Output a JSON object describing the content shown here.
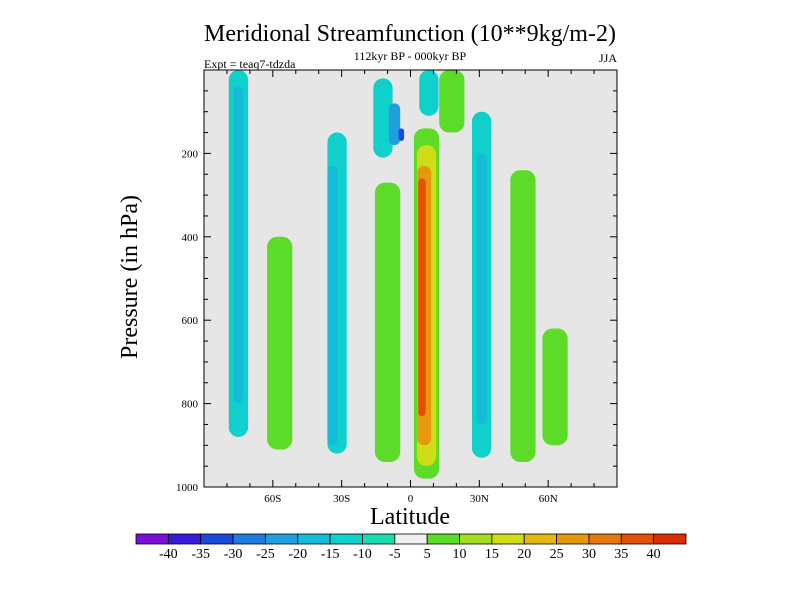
{
  "chart_data": {
    "type": "heatmap",
    "title": "Meridional Streamfunction (10**9kg/m-2)",
    "subtitle": "112kyr BP - 000kyr BP",
    "experiment_label": "Expt = teaq7-tdzda",
    "season_label": "JJA",
    "xlabel": "Latitude",
    "ylabel": "Pressure (in hPa)",
    "xlim": [
      -90,
      90
    ],
    "ylim": [
      1000,
      0
    ],
    "x_ticks": [
      {
        "value": -60,
        "label": "60S"
      },
      {
        "value": -30,
        "label": "30S"
      },
      {
        "value": 0,
        "label": "0"
      },
      {
        "value": 30,
        "label": "30N"
      },
      {
        "value": 60,
        "label": "60N"
      }
    ],
    "y_ticks": [
      {
        "value": 200,
        "label": "200"
      },
      {
        "value": 400,
        "label": "400"
      },
      {
        "value": 600,
        "label": "600"
      },
      {
        "value": 800,
        "label": "800"
      },
      {
        "value": 1000,
        "label": "1000"
      }
    ],
    "colorbar": {
      "bins": [
        {
          "color": "#7a10d8",
          "label": "-40"
        },
        {
          "color": "#3a1bdc",
          "label": "-35"
        },
        {
          "color": "#1d48dc",
          "label": "-30"
        },
        {
          "color": "#1f7be0",
          "label": "-25"
        },
        {
          "color": "#1ea0dc",
          "label": "-20"
        },
        {
          "color": "#14bcd8",
          "label": "-15"
        },
        {
          "color": "#10d0cc",
          "label": "-10"
        },
        {
          "color": "#18dcb0",
          "label": "-5"
        },
        {
          "color": "#f0f0f0",
          "label": "5"
        },
        {
          "color": "#5cdc28",
          "label": "10"
        },
        {
          "color": "#a4dc20",
          "label": "15"
        },
        {
          "color": "#d0dc18",
          "label": "20"
        },
        {
          "color": "#e4b810",
          "label": "25"
        },
        {
          "color": "#e4980c",
          "label": "30"
        },
        {
          "color": "#e47808",
          "label": "35"
        },
        {
          "color": "#e45004",
          "label": "40"
        },
        {
          "color": "#dc2c00",
          "label": ""
        }
      ]
    },
    "cells": [
      {
        "lat": -75,
        "p_top": 0,
        "p_bot": 880,
        "level": "-10"
      },
      {
        "lat": -75,
        "p_top": 40,
        "p_bot": 800,
        "level": "-15"
      },
      {
        "lat": -57,
        "p_top": 400,
        "p_bot": 910,
        "level": "10"
      },
      {
        "lat": -32,
        "p_top": 150,
        "p_bot": 920,
        "level": "-10"
      },
      {
        "lat": -34,
        "p_top": 230,
        "p_bot": 900,
        "level": "-15"
      },
      {
        "lat": -12,
        "p_top": 20,
        "p_bot": 210,
        "level": "-10"
      },
      {
        "lat": -7,
        "p_top": 80,
        "p_bot": 180,
        "level": "-20"
      },
      {
        "lat": -4,
        "p_top": 140,
        "p_bot": 170,
        "level": "-30"
      },
      {
        "lat": -10,
        "p_top": 270,
        "p_bot": 940,
        "level": "10"
      },
      {
        "lat": 8,
        "p_top": 0,
        "p_bot": 110,
        "level": "-10"
      },
      {
        "lat": 18,
        "p_top": 0,
        "p_bot": 150,
        "level": "10"
      },
      {
        "lat": 7,
        "p_top": 140,
        "p_bot": 980,
        "level": "10"
      },
      {
        "lat": 7,
        "p_top": 180,
        "p_bot": 950,
        "level": "20"
      },
      {
        "lat": 6,
        "p_top": 230,
        "p_bot": 900,
        "level": "30"
      },
      {
        "lat": 5,
        "p_top": 260,
        "p_bot": 830,
        "level": "40"
      },
      {
        "lat": 31,
        "p_top": 100,
        "p_bot": 930,
        "level": "-10"
      },
      {
        "lat": 31,
        "p_top": 200,
        "p_bot": 850,
        "level": "-15"
      },
      {
        "lat": 49,
        "p_top": 240,
        "p_bot": 940,
        "level": "10"
      },
      {
        "lat": 63,
        "p_top": 620,
        "p_bot": 900,
        "level": "10"
      }
    ]
  }
}
